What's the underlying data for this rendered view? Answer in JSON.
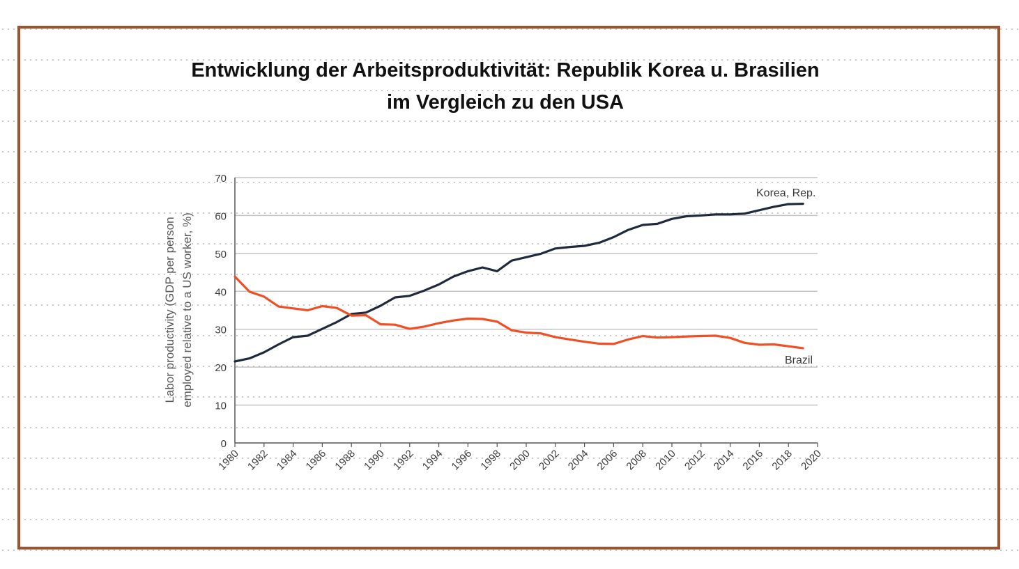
{
  "slide": {
    "title_line1": "Entwicklung  der Arbeitsproduktivität: Republik Korea u. Brasilien",
    "title_line2": "im Vergleich zu den USA",
    "frame_color": "#a0522d"
  },
  "chart_data": {
    "type": "line",
    "title": "",
    "ylabel_line1": "Labor productivity (GDP per person",
    "ylabel_line2": "employed relative to a US worker, %)",
    "xlabel": "",
    "xlim": [
      1980,
      2020
    ],
    "ylim": [
      0,
      70
    ],
    "xticks": [
      1980,
      1982,
      1984,
      1986,
      1988,
      1990,
      1992,
      1994,
      1996,
      1998,
      2000,
      2002,
      2004,
      2006,
      2008,
      2010,
      2012,
      2014,
      2016,
      2018,
      2020
    ],
    "yticks": [
      0,
      10,
      20,
      30,
      40,
      50,
      60,
      70
    ],
    "grid": true,
    "legend": "inline labels at line ends",
    "series": [
      {
        "name": "Korea, Rep.",
        "color": "#1f2a3c",
        "x": [
          1980,
          1981,
          1982,
          1983,
          1984,
          1985,
          1986,
          1987,
          1988,
          1989,
          1990,
          1991,
          1992,
          1993,
          1994,
          1995,
          1996,
          1997,
          1998,
          1999,
          2000,
          2001,
          2002,
          2003,
          2004,
          2005,
          2006,
          2007,
          2008,
          2009,
          2010,
          2011,
          2012,
          2013,
          2014,
          2015,
          2016,
          2017,
          2018,
          2019
        ],
        "values": [
          21.5,
          22.3,
          23.9,
          26.0,
          27.9,
          28.3,
          30.1,
          31.9,
          34.0,
          34.4,
          36.2,
          38.4,
          38.8,
          40.2,
          41.8,
          43.9,
          45.3,
          46.3,
          45.3,
          48.1,
          49.0,
          49.9,
          51.3,
          51.7,
          52.0,
          52.8,
          54.3,
          56.2,
          57.5,
          57.8,
          59.1,
          59.8,
          60.0,
          60.3,
          60.3,
          60.5,
          61.4,
          62.3,
          63.0,
          63.1
        ]
      },
      {
        "name": "Brazil",
        "color": "#f04e23",
        "x": [
          1980,
          1981,
          1982,
          1983,
          1984,
          1985,
          1986,
          1987,
          1988,
          1989,
          1990,
          1991,
          1992,
          1993,
          1994,
          1995,
          1996,
          1997,
          1998,
          1999,
          2000,
          2001,
          2002,
          2003,
          2004,
          2005,
          2006,
          2007,
          2008,
          2009,
          2010,
          2011,
          2012,
          2013,
          2014,
          2015,
          2016,
          2017,
          2018,
          2019
        ],
        "values": [
          43.9,
          39.9,
          38.6,
          36.0,
          35.5,
          35.0,
          36.1,
          35.6,
          33.6,
          33.7,
          31.3,
          31.2,
          30.1,
          30.7,
          31.6,
          32.3,
          32.8,
          32.7,
          32.0,
          29.7,
          29.1,
          28.9,
          27.9,
          27.3,
          26.7,
          26.2,
          26.1,
          27.3,
          28.2,
          27.8,
          27.9,
          28.1,
          28.2,
          28.3,
          27.7,
          26.4,
          25.9,
          26.0,
          25.5,
          25.0
        ]
      }
    ]
  }
}
